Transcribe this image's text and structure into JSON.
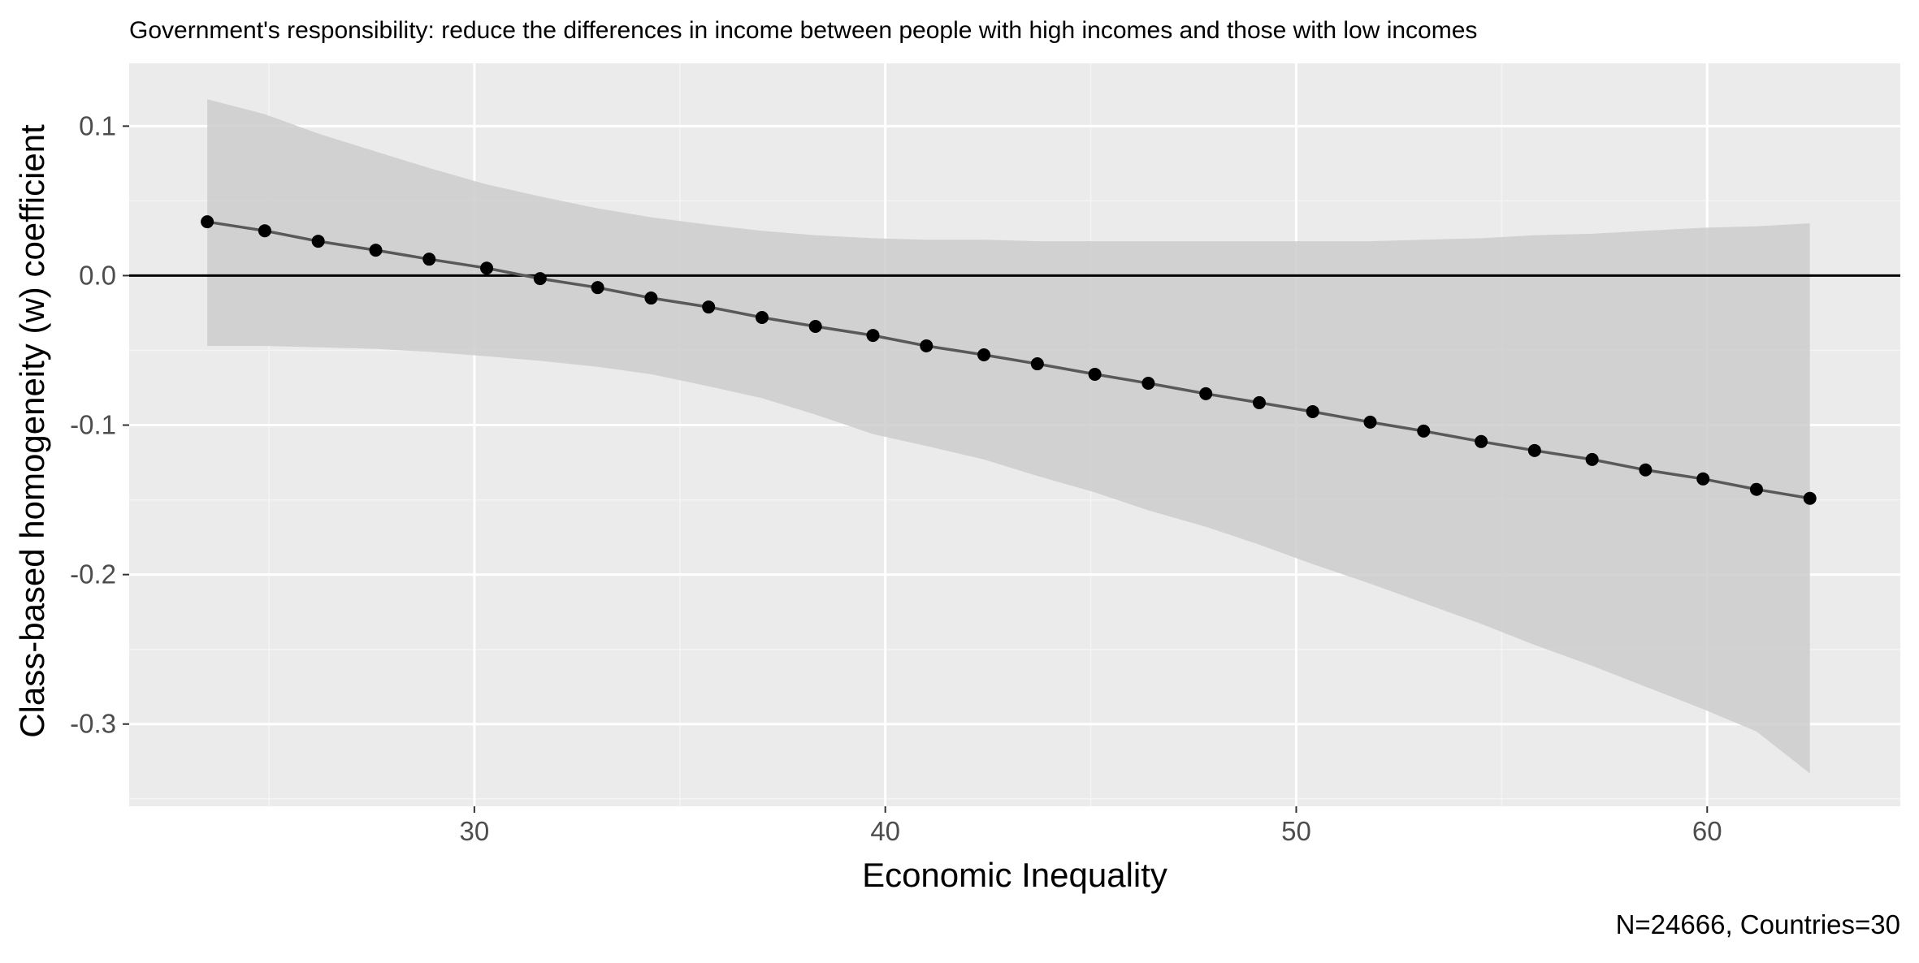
{
  "chart_data": {
    "type": "line",
    "title": "Government's responsibility: reduce the differences in income between people with high incomes and those with low incomes",
    "xlabel": "Economic Inequality",
    "ylabel": "Class-based homogeneity (w) coefficient",
    "caption": "N=24666, Countries=30",
    "xlim": [
      21.6,
      64.7
    ],
    "ylim": [
      -0.355,
      0.142
    ],
    "x_ticks": [
      30,
      40,
      50,
      60
    ],
    "x_tick_labels": [
      "30",
      "40",
      "50",
      "60"
    ],
    "x_minor_ticks": [
      25,
      35,
      45,
      55
    ],
    "y_ticks": [
      0.1,
      0.0,
      -0.1,
      -0.2,
      -0.3
    ],
    "y_tick_labels": [
      "0.1",
      "0.0",
      "-0.1",
      "-0.2",
      "-0.3"
    ],
    "y_minor_ticks": [
      0.05,
      -0.05,
      -0.15,
      -0.25,
      -0.35
    ],
    "reference_line_y": 0,
    "grid": true,
    "legend": "none",
    "series": [
      {
        "x": [
          23.5,
          24.9,
          26.2,
          27.6,
          28.9,
          30.3,
          31.6,
          33.0,
          34.3,
          35.7,
          37.0,
          38.3,
          39.7,
          41.0,
          42.4,
          43.7,
          45.1,
          46.4,
          47.8,
          49.1,
          50.4,
          51.8,
          53.1,
          54.5,
          55.8,
          57.2,
          58.5,
          59.9,
          61.2,
          62.5
        ],
        "y": [
          0.036,
          0.03,
          0.023,
          0.017,
          0.011,
          0.005,
          -0.002,
          -0.008,
          -0.015,
          -0.021,
          -0.028,
          -0.034,
          -0.04,
          -0.047,
          -0.053,
          -0.059,
          -0.066,
          -0.072,
          -0.079,
          -0.085,
          -0.091,
          -0.098,
          -0.104,
          -0.111,
          -0.117,
          -0.123,
          -0.13,
          -0.136,
          -0.143,
          -0.149
        ],
        "ci_lower": [
          -0.047,
          -0.047,
          -0.048,
          -0.049,
          -0.051,
          -0.054,
          -0.057,
          -0.061,
          -0.066,
          -0.074,
          -0.082,
          -0.093,
          -0.106,
          -0.114,
          -0.123,
          -0.134,
          -0.145,
          -0.157,
          -0.168,
          -0.18,
          -0.193,
          -0.206,
          -0.219,
          -0.233,
          -0.247,
          -0.261,
          -0.275,
          -0.29,
          -0.305,
          -0.333
        ],
        "ci_upper": [
          0.118,
          0.108,
          0.095,
          0.083,
          0.072,
          0.061,
          0.053,
          0.045,
          0.039,
          0.034,
          0.03,
          0.027,
          0.025,
          0.024,
          0.024,
          0.023,
          0.023,
          0.023,
          0.023,
          0.023,
          0.023,
          0.023,
          0.024,
          0.025,
          0.027,
          0.028,
          0.03,
          0.032,
          0.033,
          0.035
        ]
      }
    ],
    "colors": {
      "panel_background": "#ebebeb",
      "grid_major": "#ffffff",
      "grid_minor": "#f4f4f4",
      "ribbon": "#cccccc",
      "line": "#595959",
      "points": "#000000",
      "reference_line": "#000000",
      "tick_label": "#4d4d4d"
    }
  }
}
